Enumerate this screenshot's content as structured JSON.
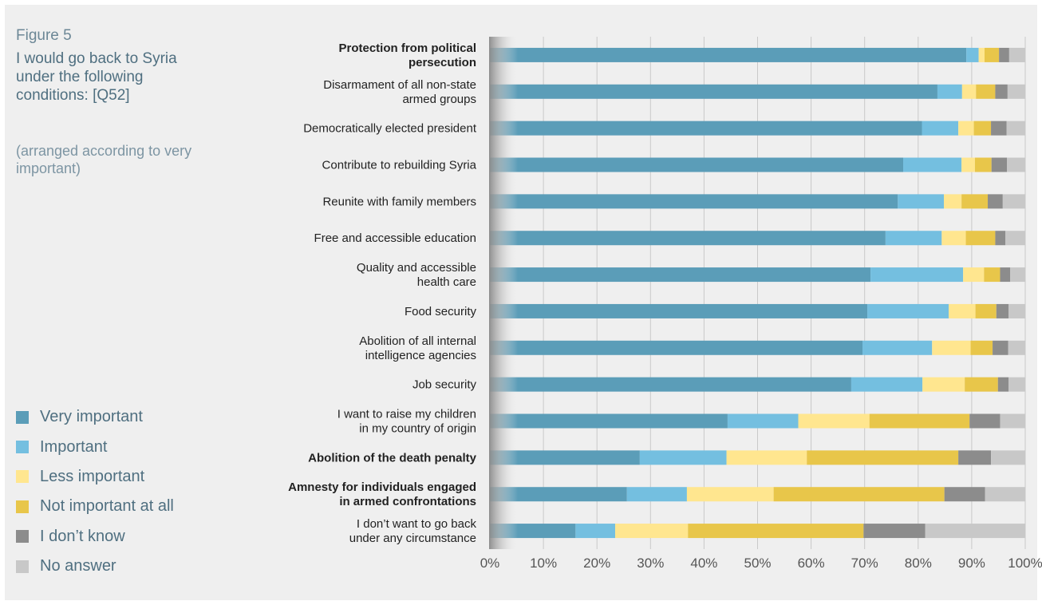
{
  "figure_label": "Figure 5",
  "title": "I would go back to Syria under the following conditions: [Q52]",
  "subtitle": "(arranged according to very important)",
  "colors": {
    "very_important": "#5b9db8",
    "important": "#74bfe0",
    "less_important": "#ffe68f",
    "not_important_at_all": "#e8c64a",
    "i_dont_know": "#8c8c8c",
    "no_answer": "#c8c8c8",
    "grid": "#c9c9c9"
  },
  "chart_data": {
    "type": "bar",
    "orientation": "horizontal",
    "stacked": true,
    "xlim": [
      0,
      100
    ],
    "x_ticks": [
      "0%",
      "10%",
      "20%",
      "30%",
      "40%",
      "50%",
      "60%",
      "70%",
      "80%",
      "90%",
      "100%"
    ],
    "grid": true,
    "legend_position": "left-bottom",
    "categories": [
      {
        "lines": [
          "Protection from political",
          "persecution"
        ],
        "bold": true
      },
      {
        "lines": [
          "Disarmament of all non-state",
          "armed groups"
        ],
        "bold": false
      },
      {
        "lines": [
          "Democratically elected president"
        ],
        "bold": false
      },
      {
        "lines": [
          "Contribute to rebuilding Syria"
        ],
        "bold": false
      },
      {
        "lines": [
          "Reunite with family members"
        ],
        "bold": false
      },
      {
        "lines": [
          "Free and accessible education"
        ],
        "bold": false
      },
      {
        "lines": [
          "Quality and accessible",
          "health care"
        ],
        "bold": false
      },
      {
        "lines": [
          "Food security"
        ],
        "bold": false
      },
      {
        "lines": [
          "Abolition of all internal",
          "intelligence agencies"
        ],
        "bold": false
      },
      {
        "lines": [
          "Job security"
        ],
        "bold": false
      },
      {
        "lines": [
          "I want to raise my children",
          "in my country of origin"
        ],
        "bold": false
      },
      {
        "lines": [
          "Abolition of the death penalty"
        ],
        "bold": true
      },
      {
        "lines": [
          "Amnesty for individuals engaged",
          "in armed confrontations"
        ],
        "bold": true
      },
      {
        "lines": [
          "I don’t want to go back",
          "under any circumstance"
        ],
        "bold": false
      }
    ],
    "series": [
      {
        "name": "Very important",
        "color_key": "very_important",
        "values": [
          89,
          83.6,
          80.7,
          77.2,
          76.2,
          73.9,
          71.1,
          70.5,
          69.6,
          67.5,
          44.4,
          28,
          25.6,
          16
        ]
      },
      {
        "name": "Important",
        "color_key": "important",
        "values": [
          2.3,
          4.6,
          6.8,
          10.9,
          8.6,
          10.5,
          17.3,
          15.2,
          13,
          13.3,
          13.2,
          16.2,
          11.2,
          7.4
        ]
      },
      {
        "name": "Less important",
        "color_key": "less_important",
        "values": [
          1.1,
          2.6,
          2.9,
          2.5,
          3.3,
          4.5,
          3.9,
          5,
          7.2,
          7.9,
          13.3,
          15,
          16.2,
          13.6
        ]
      },
      {
        "name": "Not important at all",
        "color_key": "not_important_at_all",
        "values": [
          2.7,
          3.6,
          3.2,
          3.1,
          4.9,
          5.5,
          3,
          3.9,
          4.1,
          6.2,
          18.7,
          28.3,
          31.9,
          32.8
        ]
      },
      {
        "name": "I don’t know",
        "color_key": "i_dont_know",
        "values": [
          1.9,
          2.3,
          2.9,
          2.9,
          2.8,
          1.9,
          1.9,
          2.3,
          2.9,
          2,
          5.7,
          6.1,
          7.6,
          11.5
        ]
      },
      {
        "name": "No answer",
        "color_key": "no_answer",
        "values": [
          3,
          3.3,
          3.5,
          3.4,
          4.2,
          3.7,
          2.8,
          3.1,
          3.2,
          3.1,
          4.7,
          6.4,
          7.5,
          18.7
        ]
      }
    ]
  }
}
